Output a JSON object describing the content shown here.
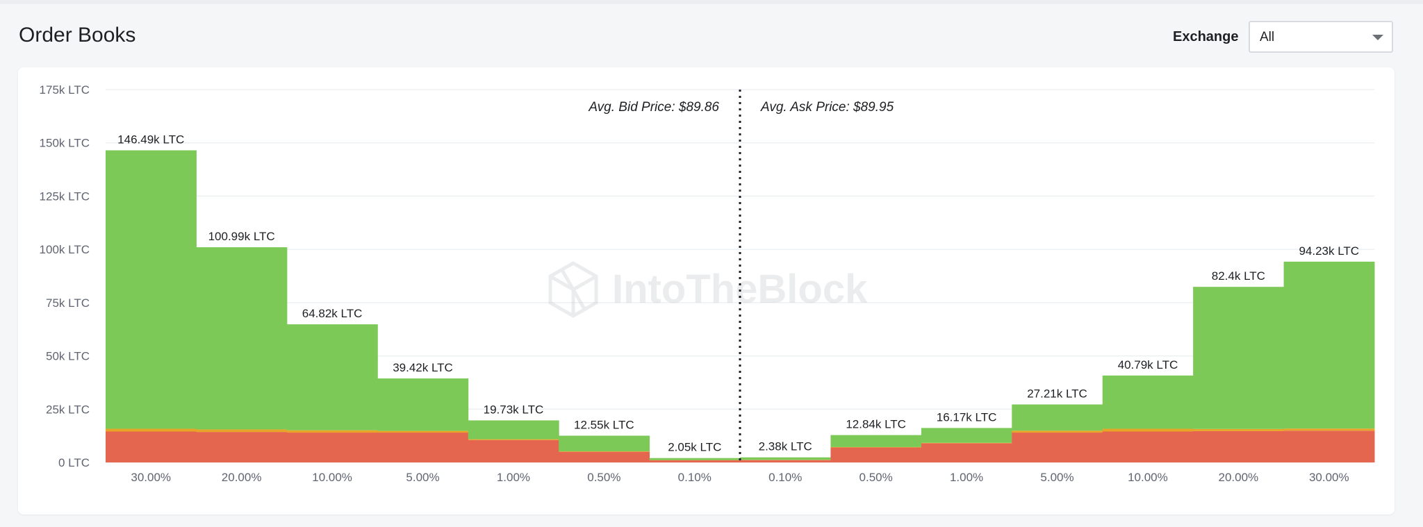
{
  "header": {
    "title": "Order Books",
    "exchange_label": "Exchange",
    "exchange_value": "All"
  },
  "watermark": "IntoTheBlock",
  "colors": {
    "green": "#7dc957",
    "red": "#e5664f",
    "orange": "#e8a426",
    "grid": "#edf0f3"
  },
  "chart_data": {
    "type": "bar",
    "title": "",
    "xlabel": "",
    "ylabel": "",
    "unit": "LTC",
    "ylim": [
      0,
      175000
    ],
    "y_ticks": [
      "0 LTC",
      "25k LTC",
      "50k LTC",
      "75k LTC",
      "100k LTC",
      "125k LTC",
      "150k LTC",
      "175k LTC"
    ],
    "annotations": {
      "bid": "Avg. Bid Price: $89.86",
      "ask": "Avg. Ask Price: $89.95"
    },
    "categories": [
      "30.00%",
      "20.00%",
      "10.00%",
      "5.00%",
      "1.00%",
      "0.50%",
      "0.10%",
      "0.10%",
      "0.50%",
      "1.00%",
      "5.00%",
      "10.00%",
      "20.00%",
      "30.00%"
    ],
    "sides": [
      "bid",
      "bid",
      "bid",
      "bid",
      "bid",
      "bid",
      "bid",
      "ask",
      "ask",
      "ask",
      "ask",
      "ask",
      "ask",
      "ask"
    ],
    "totals": [
      146490,
      100990,
      64820,
      39420,
      19730,
      12550,
      2050,
      2380,
      12840,
      16170,
      27210,
      40790,
      82400,
      94230
    ],
    "value_labels": [
      "146.49k LTC",
      "100.99k LTC",
      "64.82k LTC",
      "39.42k LTC",
      "19.73k LTC",
      "12.55k LTC",
      "2.05k LTC",
      "2.38k LTC",
      "12.84k LTC",
      "16.17k LTC",
      "27.21k LTC",
      "40.79k LTC",
      "82.4k LTC",
      "94.23k LTC"
    ],
    "series": [
      {
        "values": [
          14500,
          14300,
          14000,
          14000,
          10500,
          5000,
          1000,
          1100,
          7000,
          9000,
          14000,
          14500,
          14700,
          14900
        ]
      },
      {
        "values": [
          1300,
          1200,
          1100,
          800,
          400,
          200,
          100,
          100,
          200,
          200,
          900,
          1300,
          1000,
          1000
        ]
      },
      {
        "values": [
          130690,
          85490,
          49720,
          24620,
          8830,
          7350,
          950,
          1180,
          5640,
          6970,
          12310,
          24990,
          66700,
          78330
        ]
      }
    ]
  }
}
